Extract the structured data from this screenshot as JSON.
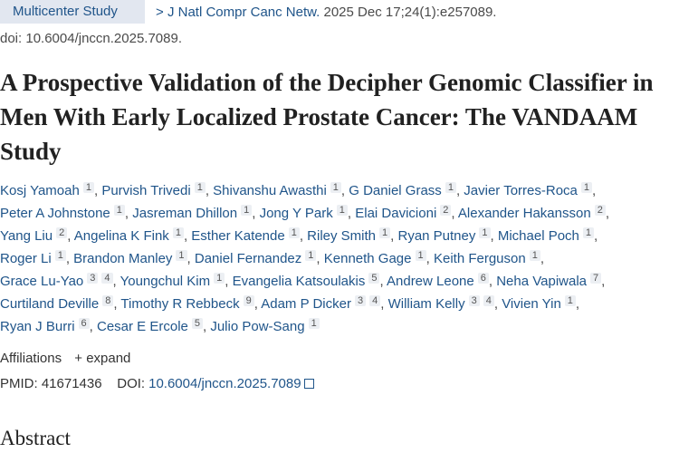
{
  "header": {
    "publication_type": "Multicenter Study",
    "journal": "J Natl Compr Canc Netw.",
    "citation": "2025 Dec 17;24(1):e257089.",
    "doi_line": "doi: 10.6004/jnccn.2025.7089."
  },
  "title": "A Prospective Validation of the Decipher Genomic Classifier in Men With Early Localized Prostate Cancer: The VANDAAM Study",
  "author_lines": [
    [
      [
        "Kosj Yamoah",
        "1"
      ],
      [
        "Purvish Trivedi",
        "1"
      ],
      [
        "Shivanshu Awasthi",
        "1"
      ],
      [
        "G Daniel Grass",
        "1"
      ],
      [
        "Javier Torres-Roca",
        "1"
      ]
    ],
    [
      [
        "Peter A Johnstone",
        "1"
      ],
      [
        "Jasreman Dhillon",
        "1"
      ],
      [
        "Jong Y Park",
        "1"
      ],
      [
        "Elai Davicioni",
        "2"
      ],
      [
        "Alexander Hakansson",
        "2"
      ]
    ],
    [
      [
        "Yang Liu",
        "2"
      ],
      [
        "Angelina K Fink",
        "1"
      ],
      [
        "Esther Katende",
        "1"
      ],
      [
        "Riley Smith",
        "1"
      ],
      [
        "Ryan Putney",
        "1"
      ],
      [
        "Michael Poch",
        "1"
      ]
    ],
    [
      [
        "Roger Li",
        "1"
      ],
      [
        "Brandon Manley",
        "1"
      ],
      [
        "Daniel Fernandez",
        "1"
      ],
      [
        "Kenneth Gage",
        "1"
      ],
      [
        "Keith Ferguson",
        "1"
      ]
    ],
    [
      [
        "Grace Lu-Yao",
        "3 4"
      ],
      [
        "Youngchul Kim",
        "1"
      ],
      [
        "Evangelia Katsoulakis",
        "5"
      ],
      [
        "Andrew Leone",
        "6"
      ],
      [
        "Neha Vapiwala",
        "7"
      ]
    ],
    [
      [
        "Curtiland Deville",
        "8"
      ],
      [
        "Timothy R Rebbeck",
        "9"
      ],
      [
        "Adam P Dicker",
        "3 4"
      ],
      [
        "William Kelly",
        "3 4"
      ],
      [
        "Vivien Yin",
        "1"
      ]
    ],
    [
      [
        "Ryan J Burri",
        "6"
      ],
      [
        "Cesar E Ercole",
        "5"
      ],
      [
        "Julio Pow-Sang",
        "1"
      ]
    ]
  ],
  "affiliations": {
    "label": "Affiliations",
    "expand": "+ expand"
  },
  "ids": {
    "pmid_label": "PMID:",
    "pmid": "41671436",
    "doi_label": "DOI:",
    "doi": "10.6004/jnccn.2025.7089",
    "doi_icon": "external-link-icon"
  },
  "abstract_heading": "Abstract",
  "colors": {
    "link": "#20558a",
    "badge_bg": "#e2e7f0"
  }
}
